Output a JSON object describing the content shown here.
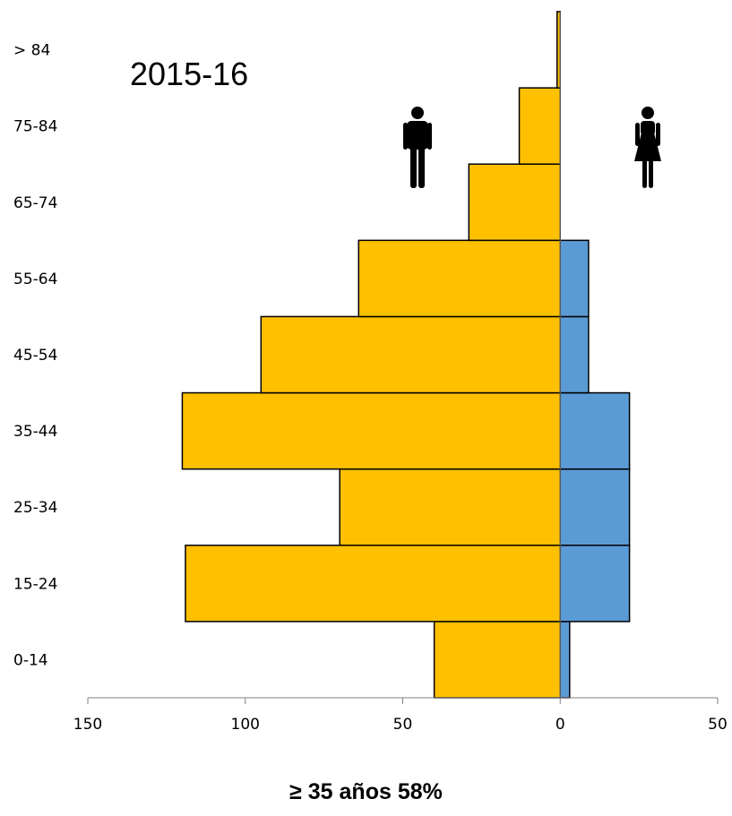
{
  "chart_data": {
    "type": "bar",
    "orientation": "horizontal-pyramid",
    "title": "2015-16",
    "categories": [
      "0-14",
      "15-24",
      "25-34",
      "35-44",
      "45-54",
      "55-64",
      "65-74",
      "75-84",
      "> 84"
    ],
    "series": [
      {
        "name": "male-icon",
        "side": "left",
        "color": "#FFC000",
        "values": [
          40,
          119,
          70,
          120,
          95,
          64,
          29,
          13,
          1
        ]
      },
      {
        "name": "female-icon",
        "side": "right",
        "color": "#5B9BD5",
        "values": [
          3,
          22,
          22,
          22,
          9,
          9,
          0,
          0,
          0
        ]
      }
    ],
    "xlim": [
      -150,
      50
    ],
    "xticks": [
      -150,
      -100,
      -50,
      0,
      50
    ],
    "xtick_labels": [
      "150",
      "100",
      "50",
      "0",
      "50"
    ],
    "grid": false,
    "footnote": "≥ 35 años 58%"
  }
}
